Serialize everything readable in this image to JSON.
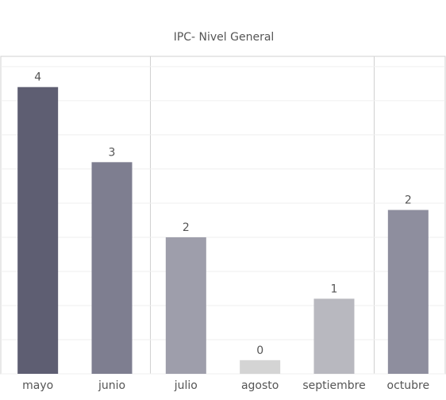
{
  "chart_data": {
    "type": "bar",
    "title": "IPC- Nivel General",
    "categories": [
      "mayo",
      "junio",
      "julio",
      "agosto",
      "septiembre",
      "octubre"
    ],
    "values": [
      4.2,
      3.1,
      2.0,
      0.2,
      1.1,
      2.4
    ],
    "value_labels": [
      "4",
      "3",
      "2",
      "0",
      "1",
      "2"
    ],
    "colors": [
      "#5e5e72",
      "#7e7e90",
      "#9e9eab",
      "#d4d4d4",
      "#b8b8bf",
      "#8e8e9e"
    ],
    "ylim": [
      0,
      4.65
    ],
    "yticks": [
      0,
      0.5,
      1,
      1.5,
      2,
      2.5,
      3,
      3.5,
      4,
      4.5
    ],
    "grid": true
  }
}
